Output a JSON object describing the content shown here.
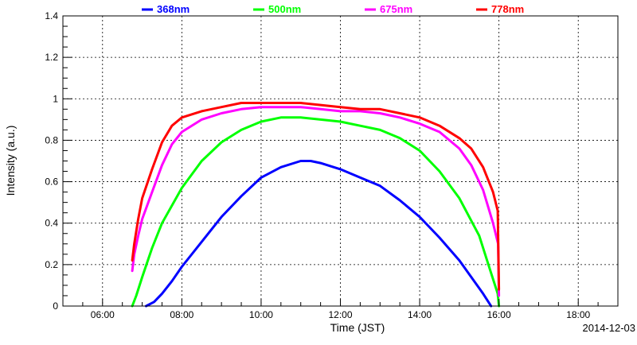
{
  "chart_data": {
    "type": "line",
    "title": "",
    "xlabel": "Time (JST)",
    "ylabel": "Intensity (a.u.)",
    "date_label": "2014-12-03",
    "xlim": [
      5.0,
      19.0
    ],
    "ylim": [
      0,
      1.4
    ],
    "x_ticks": [
      {
        "value": 6,
        "label": "06:00"
      },
      {
        "value": 8,
        "label": "08:00"
      },
      {
        "value": 10,
        "label": "10:00"
      },
      {
        "value": 12,
        "label": "12:00"
      },
      {
        "value": 14,
        "label": "14:00"
      },
      {
        "value": 16,
        "label": "16:00"
      },
      {
        "value": 18,
        "label": "18:00"
      }
    ],
    "y_ticks": [
      {
        "value": 0,
        "label": "0"
      },
      {
        "value": 0.2,
        "label": "0.2"
      },
      {
        "value": 0.4,
        "label": "0.4"
      },
      {
        "value": 0.6,
        "label": "0.6"
      },
      {
        "value": 0.8,
        "label": "0.8"
      },
      {
        "value": 1.0,
        "label": "1"
      },
      {
        "value": 1.2,
        "label": "1.2"
      },
      {
        "value": 1.4,
        "label": "1.4"
      }
    ],
    "grid": true,
    "legend": "top",
    "series": [
      {
        "name": "368nm",
        "color": "#0000ff",
        "points": [
          [
            7.1,
            0.0
          ],
          [
            7.3,
            0.02
          ],
          [
            7.5,
            0.06
          ],
          [
            7.75,
            0.12
          ],
          [
            8.0,
            0.19
          ],
          [
            8.5,
            0.31
          ],
          [
            9.0,
            0.43
          ],
          [
            9.5,
            0.53
          ],
          [
            10.0,
            0.62
          ],
          [
            10.5,
            0.67
          ],
          [
            11.0,
            0.7
          ],
          [
            11.25,
            0.7
          ],
          [
            11.5,
            0.69
          ],
          [
            12.0,
            0.66
          ],
          [
            12.5,
            0.62
          ],
          [
            13.0,
            0.58
          ],
          [
            13.5,
            0.51
          ],
          [
            14.0,
            0.43
          ],
          [
            14.5,
            0.33
          ],
          [
            15.0,
            0.22
          ],
          [
            15.3,
            0.14
          ],
          [
            15.6,
            0.06
          ],
          [
            15.8,
            0.0
          ]
        ]
      },
      {
        "name": "500nm",
        "color": "#00ff00",
        "points": [
          [
            6.75,
            0.0
          ],
          [
            6.85,
            0.05
          ],
          [
            7.0,
            0.14
          ],
          [
            7.25,
            0.28
          ],
          [
            7.5,
            0.4
          ],
          [
            8.0,
            0.57
          ],
          [
            8.5,
            0.7
          ],
          [
            9.0,
            0.79
          ],
          [
            9.5,
            0.85
          ],
          [
            10.0,
            0.89
          ],
          [
            10.5,
            0.91
          ],
          [
            11.0,
            0.91
          ],
          [
            11.5,
            0.9
          ],
          [
            12.0,
            0.89
          ],
          [
            12.5,
            0.87
          ],
          [
            13.0,
            0.85
          ],
          [
            13.5,
            0.81
          ],
          [
            14.0,
            0.75
          ],
          [
            14.5,
            0.65
          ],
          [
            15.0,
            0.52
          ],
          [
            15.5,
            0.34
          ],
          [
            15.8,
            0.16
          ],
          [
            15.97,
            0.06
          ],
          [
            16.0,
            0.0
          ]
        ]
      },
      {
        "name": "675nm",
        "color": "#ff00ff",
        "points": [
          [
            6.75,
            0.17
          ],
          [
            6.8,
            0.25
          ],
          [
            6.9,
            0.34
          ],
          [
            7.0,
            0.42
          ],
          [
            7.25,
            0.55
          ],
          [
            7.5,
            0.68
          ],
          [
            7.75,
            0.78
          ],
          [
            8.0,
            0.84
          ],
          [
            8.5,
            0.9
          ],
          [
            9.0,
            0.93
          ],
          [
            9.5,
            0.95
          ],
          [
            10.0,
            0.96
          ],
          [
            10.5,
            0.96
          ],
          [
            11.0,
            0.96
          ],
          [
            11.5,
            0.95
          ],
          [
            12.0,
            0.94
          ],
          [
            12.5,
            0.94
          ],
          [
            13.0,
            0.93
          ],
          [
            13.5,
            0.91
          ],
          [
            14.0,
            0.88
          ],
          [
            14.5,
            0.84
          ],
          [
            15.0,
            0.76
          ],
          [
            15.3,
            0.68
          ],
          [
            15.6,
            0.56
          ],
          [
            15.85,
            0.4
          ],
          [
            15.98,
            0.3
          ],
          [
            16.0,
            0.05
          ]
        ]
      },
      {
        "name": "778nm",
        "color": "#ff0000",
        "points": [
          [
            6.75,
            0.22
          ],
          [
            6.8,
            0.3
          ],
          [
            6.9,
            0.42
          ],
          [
            7.0,
            0.52
          ],
          [
            7.25,
            0.66
          ],
          [
            7.5,
            0.79
          ],
          [
            7.75,
            0.87
          ],
          [
            8.0,
            0.91
          ],
          [
            8.5,
            0.94
          ],
          [
            9.0,
            0.96
          ],
          [
            9.5,
            0.98
          ],
          [
            10.0,
            0.98
          ],
          [
            10.5,
            0.98
          ],
          [
            11.0,
            0.98
          ],
          [
            11.5,
            0.97
          ],
          [
            12.0,
            0.96
          ],
          [
            12.5,
            0.95
          ],
          [
            13.0,
            0.95
          ],
          [
            13.5,
            0.93
          ],
          [
            14.0,
            0.91
          ],
          [
            14.5,
            0.87
          ],
          [
            15.0,
            0.81
          ],
          [
            15.3,
            0.76
          ],
          [
            15.6,
            0.67
          ],
          [
            15.85,
            0.55
          ],
          [
            15.97,
            0.46
          ],
          [
            16.0,
            0.08
          ]
        ]
      }
    ]
  }
}
